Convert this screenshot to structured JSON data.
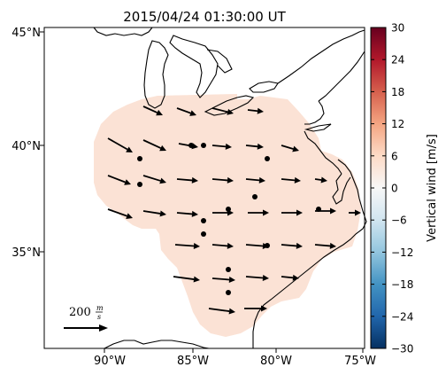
{
  "title": "2015/04/24 01:30:00 UT",
  "lon_ticks": [
    "90°W",
    "85°W",
    "80°W",
    "75°W"
  ],
  "lat_ticks": [
    "45°N",
    "40°N",
    "35°N"
  ],
  "colorbar": {
    "label": "Vertical wind [m/s]",
    "ticks": [
      "30",
      "24",
      "18",
      "12",
      "6",
      "0",
      "−6",
      "−12",
      "−18",
      "−24",
      "−30"
    ],
    "range": [
      -30,
      30
    ],
    "colors": [
      "#053061",
      "#2166ac",
      "#4393c3",
      "#92c5de",
      "#d1e5f0",
      "#f7f7f7",
      "#fddbc7",
      "#f4a582",
      "#d6604d",
      "#b2182b",
      "#67001f"
    ]
  },
  "scale_arrow": {
    "magnitude": "200",
    "unit_num": "m",
    "unit_den": "s"
  },
  "map_extent": {
    "lon": [
      -94,
      -75
    ],
    "lat": [
      30.5,
      45
    ]
  },
  "field_fill_color": "#fbe2d5",
  "colors": {
    "coast": "#000000",
    "arrow": "#000000",
    "dot": "#000000"
  }
}
